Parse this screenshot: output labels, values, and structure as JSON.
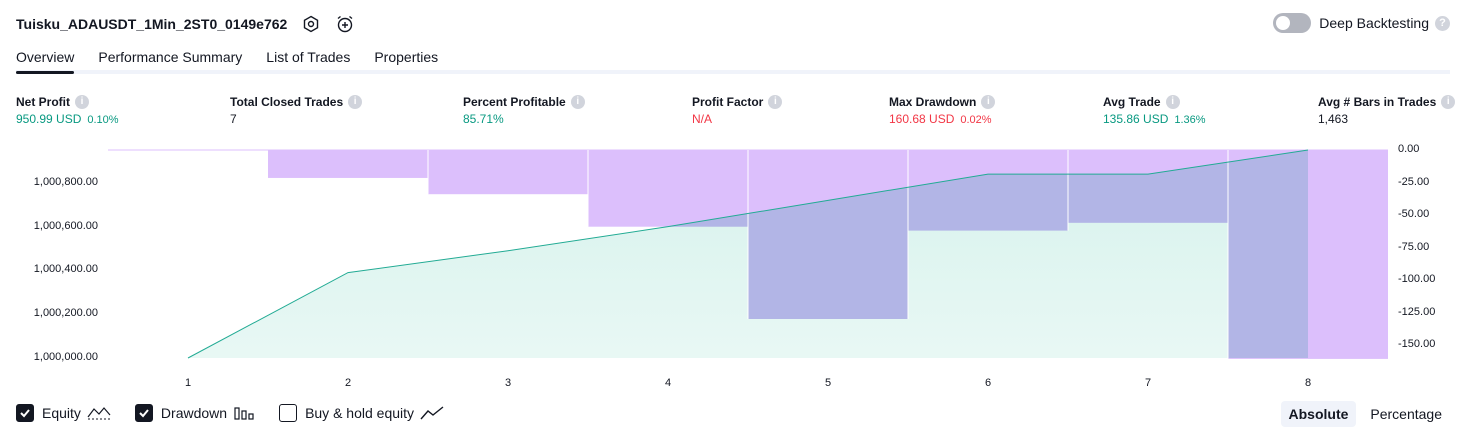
{
  "header": {
    "strategy_name": "Tuisku_ADAUSDT_1Min_2ST0_0149e762",
    "deep_backtesting_label": "Deep Backtesting",
    "deep_backtesting_enabled": false
  },
  "tabs": [
    {
      "label": "Overview",
      "active": true
    },
    {
      "label": "Performance Summary",
      "active": false
    },
    {
      "label": "List of Trades",
      "active": false
    },
    {
      "label": "Properties",
      "active": false
    }
  ],
  "metrics": [
    {
      "label": "Net Profit",
      "value": "950.99 USD",
      "pct": "0.10%",
      "color": "green"
    },
    {
      "label": "Total Closed Trades",
      "value": "7",
      "pct": "",
      "color": "dark"
    },
    {
      "label": "Percent Profitable",
      "value": "85.71%",
      "pct": "",
      "color": "green"
    },
    {
      "label": "Profit Factor",
      "value": "N/A",
      "pct": "",
      "color": "red"
    },
    {
      "label": "Max Drawdown",
      "value": "160.68 USD",
      "pct": "0.02%",
      "color": "red"
    },
    {
      "label": "Avg Trade",
      "value": "135.86 USD",
      "pct": "1.36%",
      "color": "green"
    },
    {
      "label": "Avg # Bars in Trades",
      "value": "1,463",
      "pct": "",
      "color": "dark"
    }
  ],
  "chart_data": {
    "type": "area",
    "x": [
      1,
      2,
      3,
      4,
      5,
      6,
      7,
      8
    ],
    "series": [
      {
        "values": [
          1000000,
          1000390,
          1000490,
          1000600,
          1000720,
          1000840,
          1000840,
          1000950
        ]
      },
      {
        "values": [
          0,
          -21.5,
          -34,
          -59,
          -130,
          -62,
          -56,
          -160.7
        ]
      }
    ],
    "y_left": {
      "ticks": [
        "1,000,000.00",
        "1,000,200.00",
        "1,000,400.00",
        "1,000,600.00",
        "1,000,800.00"
      ],
      "range": [
        1000000,
        1000950
      ]
    },
    "y_right": {
      "ticks": [
        "0.00",
        "-25.00",
        "-50.00",
        "-75.00",
        "-100.00",
        "-125.00",
        "-150.00"
      ],
      "range": [
        -160,
        0
      ]
    },
    "colors": {
      "equity_line": "#22ab94",
      "equity_fill": "#d6f2ec",
      "drawdown_fill": "#dcbffc",
      "overlap_fill": "#b2b5e6"
    }
  },
  "legend": [
    {
      "label": "Equity",
      "checked": true,
      "icon": "equity-line-icon"
    },
    {
      "label": "Drawdown",
      "checked": true,
      "icon": "drawdown-bars-icon"
    },
    {
      "label": "Buy & hold equity",
      "checked": false,
      "icon": "buy-hold-line-icon"
    }
  ],
  "mode": {
    "absolute": "Absolute",
    "percentage": "Percentage",
    "selected": "absolute"
  }
}
